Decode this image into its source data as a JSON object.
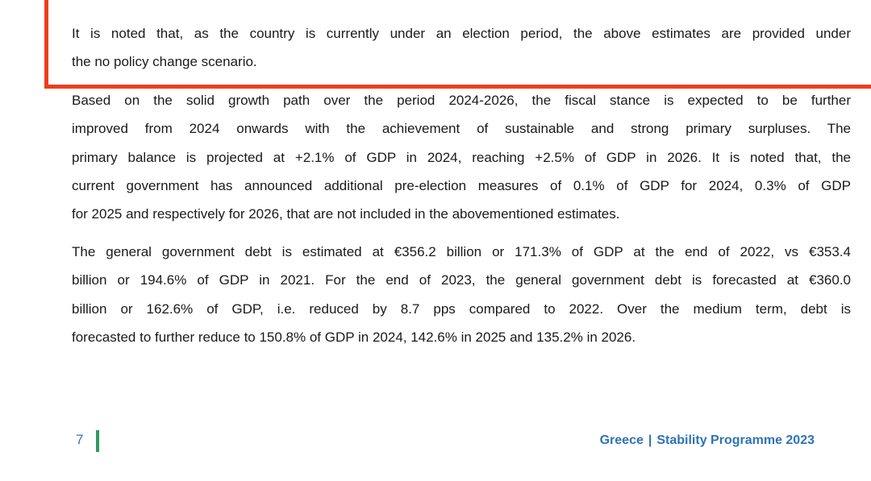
{
  "highlight_box": {
    "lines": [
      "It is noted that, as the country is currently under an election period, the above estimates are provided under",
      "the no policy change scenario."
    ]
  },
  "paragraphs": [
    {
      "lines": [
        "Based on the solid growth path over the period 2024-2026, the fiscal stance is expected to be further",
        "improved from 2024 onwards with the achievement of sustainable and strong primary surpluses. The",
        "primary balance is projected at +2.1% of GDP in 2024, reaching +2.5% of GDP in 2026. It is noted that, the",
        "current government has announced additional pre-election measures of 0.1% of GDP for 2024, 0.3% of GDP",
        "for 2025 and respectively for 2026, that are not included in the abovementioned estimates."
      ]
    },
    {
      "lines": [
        "The general government debt is estimated at €356.2 billion or 171.3% of GDP at the end of 2022, vs €353.4",
        "billion or 194.6% of GDP in 2021. For the end of 2023, the general government debt is forecasted at €360.0",
        "billion or 162.6% of GDP, i.e. reduced by 8.7 pps compared to 2022. Over the medium term, debt is",
        "forecasted to further reduce to 150.8% of GDP in 2024, 142.6% in 2025 and 135.2% in 2026."
      ]
    }
  ],
  "footer": {
    "page": "7",
    "country": "Greece",
    "separator": "|",
    "document": "Stability Programme 2023"
  }
}
